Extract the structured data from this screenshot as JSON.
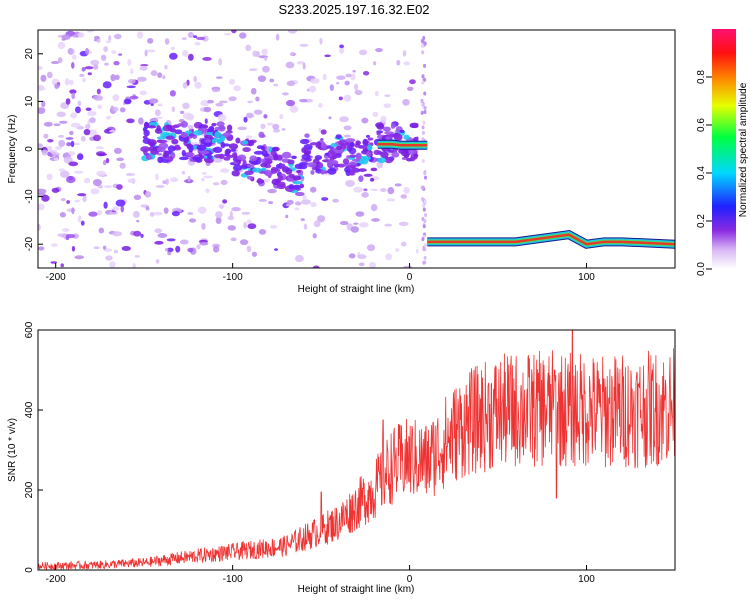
{
  "title": "S233.2025.197.16.32.E02",
  "colors": {
    "snr_line": "#ee3333",
    "tone": "#e83a2a",
    "axis": "#000000"
  },
  "chart_data": [
    {
      "type": "heatmap",
      "name": "spectrogram",
      "xlabel": "Height of straight line (km)",
      "ylabel": "Frequency (Hz)",
      "xlim": [
        -210,
        150
      ],
      "ylim": [
        -25,
        25
      ],
      "xticks": [
        -200,
        -100,
        0,
        100
      ],
      "yticks": [
        -20,
        -10,
        0,
        10,
        20
      ],
      "grid": false,
      "colorbar": {
        "label": "Normalized spectral amplitude",
        "range": [
          0,
          1
        ],
        "ticks": [
          "0.0",
          "0.2",
          "0.4",
          "0.6",
          "0.8"
        ],
        "colormap": "rainbow (white-violet-blue-cyan-green-yellow-red-magenta)"
      },
      "tone_track": [
        {
          "x": -18,
          "y": 1.0
        },
        {
          "x": -10,
          "y": 1.0
        },
        {
          "x": -5,
          "y": 0.8
        },
        {
          "x": 10,
          "y": 0.8
        }
      ],
      "tone_track_after_gap": [
        {
          "x": 10,
          "y": -19.5
        },
        {
          "x": 60,
          "y": -19.5
        },
        {
          "x": 70,
          "y": -19.0
        },
        {
          "x": 80,
          "y": -18.5
        },
        {
          "x": 90,
          "y": -18.0
        },
        {
          "x": 100,
          "y": -20.0
        },
        {
          "x": 110,
          "y": -19.5
        },
        {
          "x": 120,
          "y": -19.5
        },
        {
          "x": 150,
          "y": -20.0
        }
      ],
      "data_gap_km": [
        5,
        12
      ]
    },
    {
      "type": "line",
      "name": "snr",
      "xlabel": "Height of straight line (km)",
      "ylabel": "SNR (10 * v/v)",
      "xlim": [
        -210,
        150
      ],
      "ylim": [
        0,
        600
      ],
      "xticks": [
        -200,
        -100,
        0,
        100
      ],
      "yticks": [
        0,
        200,
        400,
        600
      ],
      "grid": false,
      "series": [
        {
          "x": [
            -210,
            -180,
            -150,
            -130,
            -110,
            -90,
            -70,
            -60,
            -50,
            -40,
            -30,
            -20,
            -10,
            0,
            10,
            20,
            30,
            40,
            50,
            60,
            70,
            80,
            90,
            100,
            110,
            120,
            130,
            140,
            150
          ],
          "y": [
            10,
            12,
            18,
            30,
            40,
            50,
            60,
            80,
            100,
            120,
            160,
            200,
            260,
            280,
            270,
            320,
            360,
            380,
            395,
            400,
            400,
            405,
            400,
            400,
            395,
            400,
            400,
            405,
            410
          ],
          "spikes": [
            {
              "x": -50,
              "y": 195
            },
            {
              "x": -15,
              "y": 375
            },
            {
              "x": 83,
              "y": 180
            },
            {
              "x": 92,
              "y": 600
            },
            {
              "x": 82,
              "y": 500
            }
          ]
        }
      ]
    }
  ]
}
